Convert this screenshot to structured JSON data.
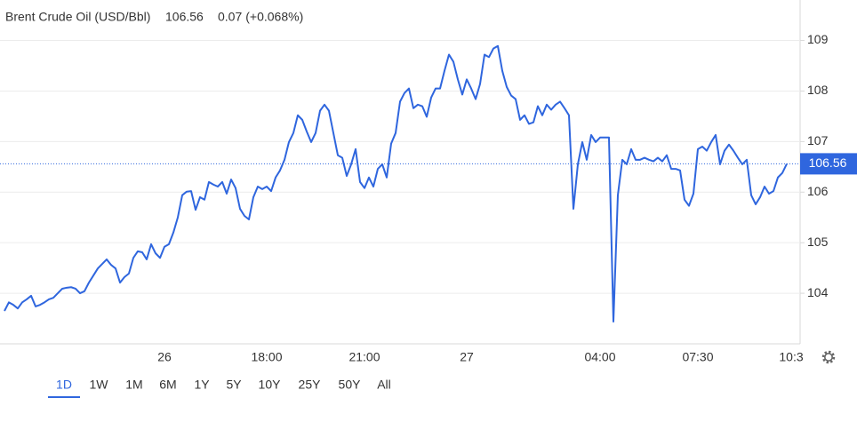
{
  "chart_data": {
    "type": "line",
    "title": "Brent Crude Oil (USD/Bbl)",
    "last_value": 106.56,
    "change": 0.07,
    "change_percent": "(+0.068%)",
    "color": "#2f66de",
    "change_color": "#3ba33b",
    "ylim": [
      103,
      109.8
    ],
    "yticks": [
      104,
      105,
      106,
      107,
      108,
      109
    ],
    "grid": true,
    "categories": [
      null,
      null,
      null,
      null,
      null,
      null,
      null,
      null,
      null,
      null,
      null,
      null,
      null,
      null,
      null,
      null,
      null,
      null,
      null,
      null,
      null,
      null,
      null,
      null,
      null,
      null,
      null,
      null,
      null,
      null,
      null,
      null,
      null,
      null,
      null,
      null,
      "26",
      null,
      null,
      null,
      null,
      null,
      null,
      null,
      null,
      null,
      null,
      null,
      null,
      null,
      null,
      null,
      null,
      null,
      null,
      null,
      null,
      null,
      null,
      "18:00",
      null,
      null,
      null,
      null,
      null,
      null,
      null,
      null,
      null,
      null,
      null,
      null,
      null,
      null,
      null,
      null,
      null,
      null,
      null,
      null,
      null,
      "21:00",
      null,
      null,
      null,
      null,
      null,
      null,
      null,
      null,
      null,
      null,
      null,
      null,
      null,
      null,
      null,
      null,
      null,
      null,
      null,
      null,
      null,
      null,
      "27",
      null,
      null,
      null,
      null,
      null,
      null,
      null,
      null,
      null,
      null,
      null,
      null,
      null,
      null,
      null,
      null,
      null,
      null,
      null,
      null,
      null,
      null,
      null,
      null,
      null,
      null,
      null,
      null,
      null,
      "04:00",
      null,
      null,
      null,
      null,
      null,
      null,
      null,
      null,
      null,
      null,
      null,
      null,
      null,
      null,
      null,
      null,
      null,
      null,
      null,
      null,
      null,
      "07:30",
      null,
      null,
      null,
      null,
      null,
      null,
      null,
      null,
      null,
      null,
      null,
      null,
      null,
      null,
      null,
      null,
      null,
      null,
      null,
      null,
      "10:3"
    ],
    "values": [
      103.65,
      103.82,
      103.77,
      103.7,
      103.82,
      103.88,
      103.95,
      103.74,
      103.77,
      103.82,
      103.88,
      103.91,
      104.0,
      104.09,
      104.11,
      104.12,
      104.09,
      104.0,
      104.04,
      104.21,
      104.35,
      104.49,
      104.58,
      104.67,
      104.56,
      104.49,
      104.21,
      104.32,
      104.39,
      104.7,
      104.83,
      104.81,
      104.67,
      104.97,
      104.79,
      104.7,
      104.92,
      104.97,
      105.2,
      105.5,
      105.94,
      106.01,
      106.02,
      105.65,
      105.9,
      105.85,
      106.2,
      106.15,
      106.11,
      106.2,
      105.97,
      106.25,
      106.08,
      105.67,
      105.53,
      105.46,
      105.9,
      106.11,
      106.06,
      106.11,
      106.02,
      106.29,
      106.43,
      106.64,
      106.99,
      107.17,
      107.52,
      107.43,
      107.2,
      106.99,
      107.17,
      107.61,
      107.73,
      107.61,
      107.17,
      106.73,
      106.68,
      106.32,
      106.55,
      106.85,
      106.2,
      106.08,
      106.29,
      106.11,
      106.46,
      106.55,
      106.29,
      106.96,
      107.17,
      107.79,
      107.96,
      108.05,
      107.66,
      107.73,
      107.7,
      107.49,
      107.87,
      108.05,
      108.05,
      108.4,
      108.72,
      108.58,
      108.23,
      107.93,
      108.23,
      108.05,
      107.84,
      108.14,
      108.72,
      108.67,
      108.84,
      108.89,
      108.4,
      108.08,
      107.91,
      107.84,
      107.43,
      107.52,
      107.35,
      107.38,
      107.7,
      107.52,
      107.73,
      107.63,
      107.73,
      107.79,
      107.66,
      107.52,
      105.67,
      106.55,
      106.99,
      106.64,
      107.13,
      106.99,
      107.08,
      107.08,
      107.08,
      103.44,
      105.94,
      106.64,
      106.55,
      106.85,
      106.64,
      106.64,
      106.68,
      106.64,
      106.61,
      106.68,
      106.61,
      106.73,
      106.46,
      106.46,
      106.43,
      105.85,
      105.73,
      105.97,
      106.85,
      106.9,
      106.82,
      106.99,
      107.13,
      106.55,
      106.82,
      106.94,
      106.82,
      106.68,
      106.55,
      106.64,
      105.94,
      105.76,
      105.9,
      106.11,
      105.97,
      106.02,
      106.29,
      106.38,
      106.56,
      null
    ],
    "range_buttons": [
      "1D",
      "1W",
      "1M",
      "6M",
      "1Y",
      "5Y",
      "10Y",
      "25Y",
      "50Y",
      "All"
    ],
    "selected_range": "1D"
  }
}
